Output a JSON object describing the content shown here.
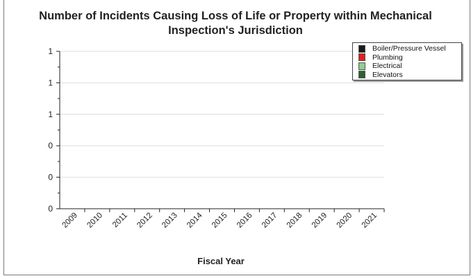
{
  "chart_data": {
    "type": "bar",
    "title": "Number of Incidents Causing Loss of Life or Property within Mechanical\nInspection's Jurisdiction",
    "xlabel": "Fiscal Year",
    "ylabel": "",
    "categories": [
      "2009",
      "2010",
      "2011",
      "2012",
      "2013",
      "2014",
      "2015",
      "2016",
      "2017",
      "2018",
      "2019",
      "2020",
      "2021"
    ],
    "ytick_labels": [
      "0",
      "0",
      "0",
      "1",
      "1",
      "1"
    ],
    "ylim": [
      0,
      1
    ],
    "grid": true,
    "legend_position": "top-right",
    "series": [
      {
        "name": "Boiler/Pressure Vessel",
        "color": "#1a1a1a",
        "values": [
          0,
          0,
          0,
          0,
          0,
          0,
          0,
          0,
          0,
          0,
          0,
          0,
          0
        ]
      },
      {
        "name": "Plumbing",
        "color": "#e02020",
        "values": [
          0,
          0,
          0,
          0,
          0,
          0,
          0,
          0,
          0,
          0,
          0,
          0,
          0
        ]
      },
      {
        "name": "Electrical",
        "color": "#8fcf8f",
        "values": [
          0,
          0,
          0,
          0,
          0,
          0,
          0,
          0,
          0,
          0,
          0,
          0,
          0
        ]
      },
      {
        "name": "Elevators",
        "color": "#2f5f2f",
        "values": [
          0,
          0,
          0,
          0,
          0,
          0,
          0,
          0,
          0,
          0,
          0,
          0,
          0
        ]
      }
    ]
  }
}
